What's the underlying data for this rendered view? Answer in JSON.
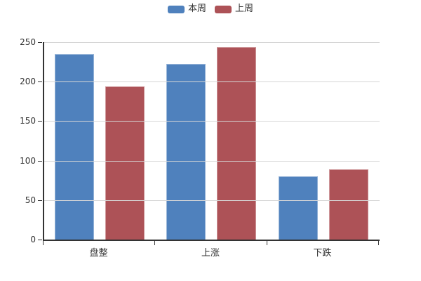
{
  "chart_data": {
    "type": "bar",
    "title": "",
    "xlabel": "",
    "ylabel": "",
    "categories": [
      "盘整",
      "上涨",
      "下跌"
    ],
    "series": [
      {
        "name": "本周",
        "color": "#4f81bd",
        "values": [
          235,
          222,
          80
        ]
      },
      {
        "name": "上周",
        "color": "#ad5257",
        "values": [
          194,
          244,
          89
        ]
      }
    ],
    "ylim": [
      0,
      250
    ],
    "ytick_interval": 50,
    "ytick_labels": [
      "0",
      "50",
      "100",
      "150",
      "200",
      "250"
    ],
    "grid": true,
    "legend_position": "top-center"
  },
  "colors": {
    "axis": "#333333",
    "grid": "#d6d6d6",
    "text": "#333333",
    "background": "#ffffff",
    "series_this_week": "#4f81bd",
    "series_last_week": "#ad5257"
  }
}
